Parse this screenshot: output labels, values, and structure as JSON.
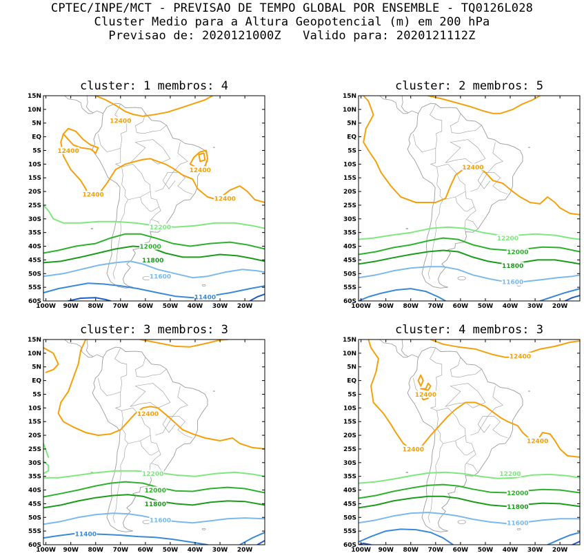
{
  "header": {
    "line1": "CPTEC/INPE/MCT - PREVISAO DE TEMPO GLOBAL POR ENSEMBLE - TQ0126L028",
    "line2": "Cluster Medio para a Altura Geopotencial (m) em 200 hPa",
    "line3": "Previsao de: 2020121000Z   Valido para: 2020121112Z"
  },
  "axes": {
    "lat_labels": [
      "15N",
      "10N",
      "5N",
      "EQ",
      "5S",
      "10S",
      "15S",
      "20S",
      "25S",
      "30S",
      "35S",
      "40S",
      "45S",
      "50S",
      "55S",
      "60S"
    ],
    "lon_labels": [
      "100W",
      "90W",
      "80W",
      "70W",
      "60W",
      "50W",
      "40W",
      "30W",
      "20W"
    ]
  },
  "colors": {
    "c12400": "#f5a00a",
    "c12200": "#7ee87e",
    "c12000": "#2cb12c",
    "c11800": "#199c19",
    "c11600": "#7ab8ee",
    "c11400": "#3a88d8",
    "c11200": "#1e5cc8",
    "coast": "#9a9a9a"
  },
  "panels": [
    {
      "title": "cluster: 1   membros: 4",
      "contour_labels": [
        {
          "text": "12400",
          "color": "c12400",
          "lon": -70,
          "lat": 6
        },
        {
          "text": "12400",
          "color": "c12400",
          "lon": -91,
          "lat": -5
        },
        {
          "text": "12400",
          "color": "c12400",
          "lon": -38,
          "lat": -12
        },
        {
          "text": "12400",
          "color": "c12400",
          "lon": -81,
          "lat": -21
        },
        {
          "text": "12400",
          "color": "c12400",
          "lon": -28,
          "lat": -22.5
        },
        {
          "text": "12200",
          "color": "c12200",
          "lon": -54,
          "lat": -33
        },
        {
          "text": "12000",
          "color": "c12000",
          "lon": -58,
          "lat": -40
        },
        {
          "text": "11800",
          "color": "c11800",
          "lon": -57,
          "lat": -45
        },
        {
          "text": "11600",
          "color": "c11600",
          "lon": -54,
          "lat": -51
        },
        {
          "text": "11400",
          "color": "c11400",
          "lon": -36,
          "lat": -58.5
        }
      ]
    },
    {
      "title": "cluster: 2   membros: 5",
      "contour_labels": [
        {
          "text": "12400",
          "color": "c12400",
          "lon": -55,
          "lat": -11
        },
        {
          "text": "12200",
          "color": "c12200",
          "lon": -41,
          "lat": -37
        },
        {
          "text": "12000",
          "color": "c12000",
          "lon": -37,
          "lat": -42
        },
        {
          "text": "11800",
          "color": "c11800",
          "lon": -39,
          "lat": -47
        },
        {
          "text": "11600",
          "color": "c11600",
          "lon": -39,
          "lat": -53
        }
      ]
    },
    {
      "title": "cluster: 3   membros: 3",
      "contour_labels": [
        {
          "text": "12400",
          "color": "c12400",
          "lon": -59,
          "lat": -12
        },
        {
          "text": "12200",
          "color": "c12200",
          "lon": -57,
          "lat": -34
        },
        {
          "text": "12000",
          "color": "c12000",
          "lon": -56,
          "lat": -40
        },
        {
          "text": "11800",
          "color": "c11800",
          "lon": -56,
          "lat": -45
        },
        {
          "text": "11600",
          "color": "c11600",
          "lon": -54,
          "lat": -51
        },
        {
          "text": "11400",
          "color": "c11400",
          "lon": -84,
          "lat": -56
        }
      ]
    },
    {
      "title": "cluster: 4   membros: 3",
      "contour_labels": [
        {
          "text": "12400",
          "color": "c12400",
          "lon": -36,
          "lat": 9
        },
        {
          "text": "12400",
          "color": "c12400",
          "lon": -74,
          "lat": -5
        },
        {
          "text": "12400",
          "color": "c12400",
          "lon": -29,
          "lat": -22
        },
        {
          "text": "12400",
          "color": "c12400",
          "lon": -79,
          "lat": -25
        },
        {
          "text": "12200",
          "color": "c12200",
          "lon": -40,
          "lat": -34
        },
        {
          "text": "12000",
          "color": "c12000",
          "lon": -37,
          "lat": -41
        },
        {
          "text": "11800",
          "color": "c11800",
          "lon": -37,
          "lat": -46
        },
        {
          "text": "11600",
          "color": "c11600",
          "lon": -37,
          "lat": -52
        }
      ]
    }
  ]
}
